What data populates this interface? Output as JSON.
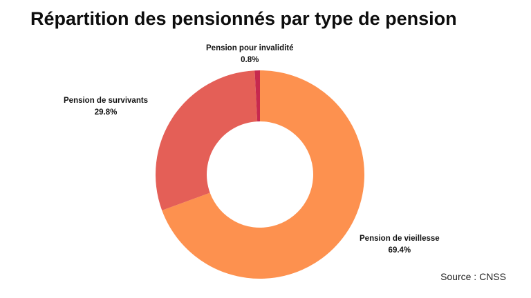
{
  "chart_data": {
    "type": "pie",
    "variant": "donut",
    "title": "Répartition des pensionnés par type de pension",
    "source": "Source : CNSS",
    "categories": [
      "Pension de vieillesse",
      "Pension de survivants",
      "Pension pour invalidité"
    ],
    "values": [
      69.4,
      29.8,
      0.8
    ],
    "value_labels": [
      "69.4%",
      "29.8%",
      "0.8%"
    ],
    "unit": "%",
    "colors": [
      "#FD914F",
      "#E45F57",
      "#C7294E"
    ],
    "legend": "none"
  }
}
